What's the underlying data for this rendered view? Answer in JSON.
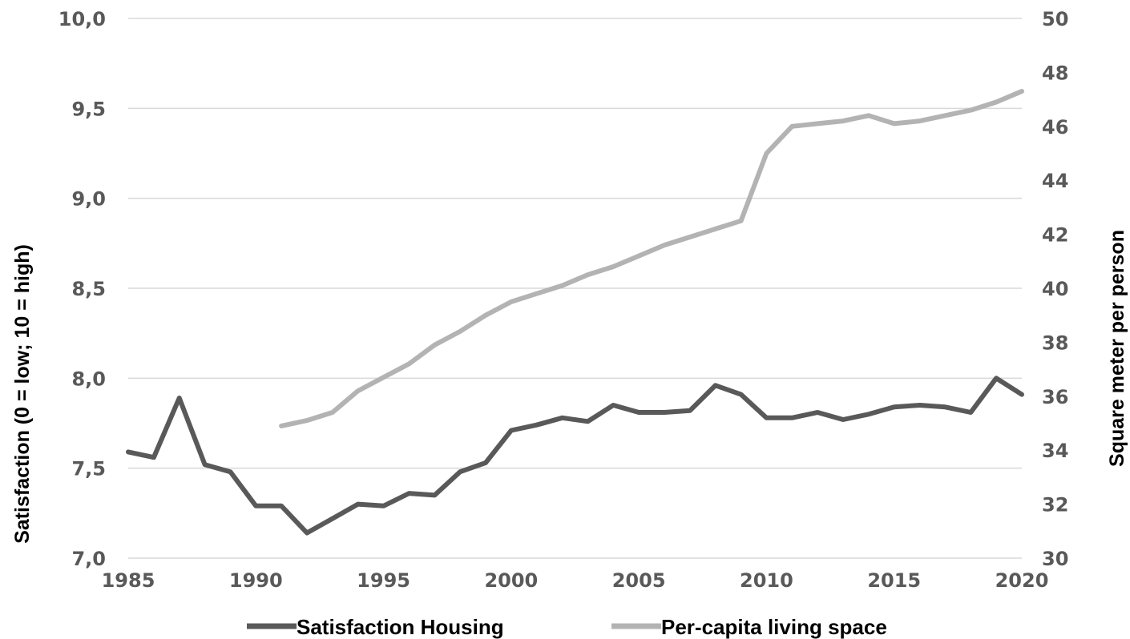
{
  "chart_data": {
    "type": "line",
    "x_ticks": [
      "1985",
      "1990",
      "1995",
      "2000",
      "2005",
      "2010",
      "2015",
      "2020"
    ],
    "y_left_ticks": [
      "10,0",
      "9,5",
      "9,0",
      "8,5",
      "8,0",
      "7,5",
      "7,0"
    ],
    "y_right_ticks": [
      "50",
      "48",
      "46",
      "44",
      "42",
      "40",
      "38",
      "36",
      "34",
      "32",
      "30"
    ],
    "xlim": [
      1985,
      2020
    ],
    "ylim_left": [
      7.0,
      10.0
    ],
    "ylim_right": [
      30,
      50
    ],
    "ylabel_left": "Satisfaction (0 = low; 10 = high)",
    "ylabel_right": "Square meter per person",
    "grid": true,
    "legend_position": "bottom",
    "series": [
      {
        "name": "Satisfaction Housing",
        "axis": "left",
        "color": "#595959",
        "x": [
          1985,
          1986,
          1987,
          1988,
          1989,
          1990,
          1991,
          1992,
          1993,
          1994,
          1995,
          1996,
          1997,
          1998,
          1999,
          2000,
          2001,
          2002,
          2003,
          2004,
          2005,
          2006,
          2007,
          2008,
          2009,
          2010,
          2011,
          2012,
          2013,
          2014,
          2015,
          2016,
          2017,
          2018,
          2019,
          2020
        ],
        "values": [
          7.59,
          7.56,
          7.89,
          7.52,
          7.48,
          7.29,
          7.29,
          7.14,
          7.22,
          7.3,
          7.29,
          7.36,
          7.35,
          7.48,
          7.53,
          7.71,
          7.74,
          7.78,
          7.76,
          7.85,
          7.81,
          7.81,
          7.82,
          7.96,
          7.91,
          7.78,
          7.78,
          7.81,
          7.77,
          7.8,
          7.84,
          7.85,
          7.84,
          7.81,
          8.0,
          7.91
        ]
      },
      {
        "name": "Per-capita living space",
        "axis": "right",
        "color": "#b3b3b3",
        "x": [
          1991,
          1992,
          1993,
          1994,
          1995,
          1996,
          1997,
          1998,
          1999,
          2000,
          2001,
          2002,
          2003,
          2004,
          2005,
          2006,
          2007,
          2008,
          2009,
          2010,
          2011,
          2012,
          2013,
          2014,
          2015,
          2016,
          2017,
          2018,
          2019,
          2020
        ],
        "values": [
          34.9,
          35.1,
          35.4,
          36.2,
          36.7,
          37.2,
          37.9,
          38.4,
          39.0,
          39.5,
          39.8,
          40.1,
          40.5,
          40.8,
          41.2,
          41.6,
          41.9,
          42.2,
          42.5,
          45.0,
          46.0,
          46.1,
          46.2,
          46.4,
          46.1,
          46.2,
          46.4,
          46.6,
          46.9,
          47.3
        ]
      }
    ]
  }
}
